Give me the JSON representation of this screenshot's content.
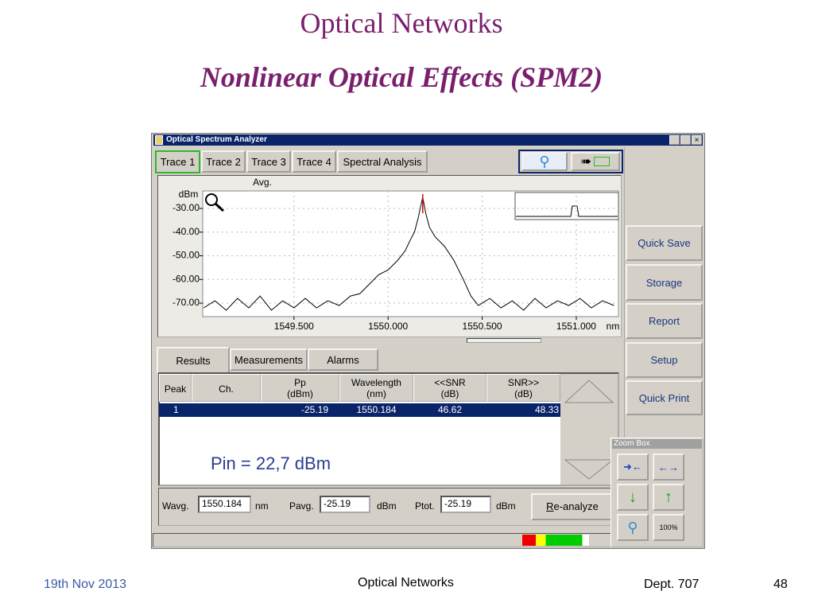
{
  "slide": {
    "title": "Optical Networks",
    "subtitle": "Nonlinear Optical Effects (SPM2)",
    "footer": {
      "date": "19th Nov 2013",
      "center": "Optical Networks",
      "dept": "Dept. 707",
      "page": "48"
    }
  },
  "window": {
    "title": "Optical Spectrum Analyzer",
    "tabs": [
      "Trace 1",
      "Trace 2",
      "Trace 3",
      "Trace 4",
      "Spectral Analysis"
    ],
    "trace_label": "Avg.",
    "side_buttons": [
      "Quick Save",
      "Storage",
      "Report",
      "Setup",
      "Quick Print"
    ],
    "result_tabs": [
      "Results",
      "Measurements",
      "Alarms"
    ],
    "table": {
      "headers": [
        [
          "Peak"
        ],
        [
          "Ch."
        ],
        [
          "Pp",
          "(dBm)"
        ],
        [
          "Wavelength",
          "(nm)"
        ],
        [
          "<<SNR",
          "(dB)"
        ],
        [
          "SNR>>",
          "(dB)"
        ]
      ],
      "row": {
        "peak": "1",
        "pp": "-25.19",
        "wavelength": "1550.184",
        "snr_left": "46.62",
        "snr_right": "48.33"
      }
    },
    "annotation": "Pin = 22,7 dBm",
    "summary": {
      "wavg_label": "Wavg.",
      "wavg": "1550.184",
      "wavg_unit": "nm",
      "pavg_label": "Pavg.",
      "pavg": "-25.19",
      "pavg_unit": "dBm",
      "ptot_label": "Ptot.",
      "ptot": "-25.19",
      "ptot_unit": "dBm",
      "button": "Re-analyze"
    },
    "zoom_box": {
      "title": "Zoom Box",
      "percent": "100%"
    }
  },
  "chart_data": {
    "type": "line",
    "y_unit": "dBm",
    "x_unit": "nm",
    "xlim": [
      1549.015,
      1551.224
    ],
    "ylim": [
      -75.7,
      -22.6
    ],
    "xticks": [
      {
        "value": 1549.5,
        "label": "1549.500"
      },
      {
        "value": 1550.0,
        "label": "1550.000"
      },
      {
        "value": 1550.5,
        "label": "1550.500"
      },
      {
        "value": 1551.0,
        "label": "1551.000"
      }
    ],
    "yticks": [
      {
        "value": -30,
        "label": "-30.00"
      },
      {
        "value": -40,
        "label": "-40.00"
      },
      {
        "value": -50,
        "label": "-50.00"
      },
      {
        "value": -60,
        "label": "-60.00"
      },
      {
        "value": -70,
        "label": "-70.00"
      }
    ],
    "grid": true,
    "marker": {
      "x": 1550.184,
      "color": "#e00000"
    },
    "series": [
      {
        "color": "#000000",
        "x": [
          1549.02,
          1549.08,
          1549.14,
          1549.2,
          1549.26,
          1549.32,
          1549.38,
          1549.44,
          1549.5,
          1549.56,
          1549.62,
          1549.68,
          1549.74,
          1549.8,
          1549.85,
          1549.9,
          1549.95,
          1550.0,
          1550.05,
          1550.09,
          1550.12,
          1550.14,
          1550.16,
          1550.184,
          1550.2,
          1550.22,
          1550.25,
          1550.3,
          1550.35,
          1550.4,
          1550.44,
          1550.48,
          1550.54,
          1550.6,
          1550.66,
          1550.72,
          1550.78,
          1550.84,
          1550.9,
          1550.96,
          1551.02,
          1551.08,
          1551.14,
          1551.2
        ],
        "values": [
          -72,
          -69,
          -73,
          -68,
          -72,
          -67,
          -73,
          -69,
          -72,
          -68,
          -72,
          -69,
          -71,
          -67,
          -66,
          -62,
          -58,
          -56,
          -52,
          -48,
          -43,
          -40,
          -34,
          -25.19,
          -32,
          -38,
          -42,
          -46,
          -52,
          -60,
          -67,
          -71,
          -68,
          -72,
          -69,
          -73,
          -68,
          -72,
          -69,
          -71,
          -68,
          -72,
          -69,
          -71
        ]
      }
    ]
  }
}
